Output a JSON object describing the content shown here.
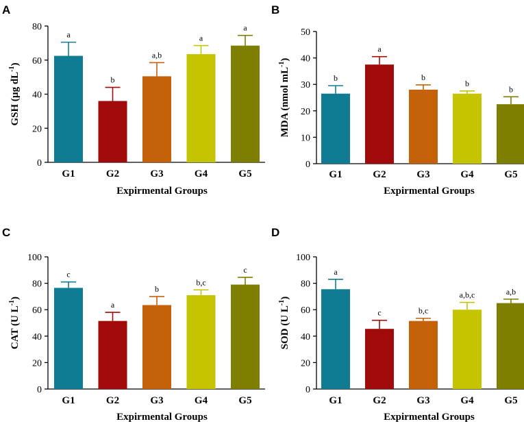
{
  "figure": {
    "palette": [
      "#0f7c93",
      "#a00a0a",
      "#c56209",
      "#c4c400",
      "#7e7e00"
    ],
    "errorbar_color_mode": "match-bar"
  },
  "chart_data": [
    {
      "panel": "A",
      "type": "bar",
      "categories": [
        "G1",
        "G2",
        "G3",
        "G4",
        "G5"
      ],
      "values": [
        62.5,
        36,
        50.5,
        63.5,
        68.5
      ],
      "errors": [
        8,
        8,
        8,
        5,
        6
      ],
      "significance": [
        "a",
        "b",
        "a,b",
        "a",
        "a"
      ],
      "ylabel": "GSH (µg dL",
      "ylabel_sup": "-1",
      "ylabel_close": ")",
      "xlabel": "Expirmental Groups",
      "ylim": [
        0,
        80
      ],
      "yticks": [
        0,
        20,
        40,
        60,
        80
      ]
    },
    {
      "panel": "B",
      "type": "bar",
      "categories": [
        "G1",
        "G2",
        "G3",
        "G4",
        "G5"
      ],
      "values": [
        26.5,
        37.5,
        28,
        26.5,
        22.5
      ],
      "errors": [
        3,
        3,
        1.8,
        1,
        2.8
      ],
      "significance": [
        "b",
        "a",
        "b",
        "b",
        "b"
      ],
      "ylabel": "MDA (nmol mL",
      "ylabel_sup": "-1",
      "ylabel_close": ")",
      "xlabel": "Expirmental Groups",
      "ylim": [
        0,
        50
      ],
      "yticks": [
        0,
        10,
        20,
        30,
        40,
        50
      ]
    },
    {
      "panel": "C",
      "type": "bar",
      "categories": [
        "G1",
        "G2",
        "G3",
        "G4",
        "G5"
      ],
      "values": [
        76.5,
        51.5,
        63.5,
        71,
        79
      ],
      "errors": [
        4.5,
        6.5,
        6.5,
        4,
        5.5
      ],
      "significance": [
        "c",
        "a",
        "b",
        "b,c",
        "c"
      ],
      "ylabel": "CAT (U L",
      "ylabel_sup": "-1",
      "ylabel_close": ")",
      "xlabel": "Expirmental Groups",
      "ylim": [
        0,
        100
      ],
      "yticks": [
        0,
        20,
        40,
        60,
        80,
        100
      ]
    },
    {
      "panel": "D",
      "type": "bar",
      "categories": [
        "G1",
        "G2",
        "G3",
        "G4",
        "G5"
      ],
      "values": [
        75.5,
        45.5,
        51.5,
        60,
        65
      ],
      "errors": [
        7.5,
        6.5,
        2,
        5.5,
        3
      ],
      "significance": [
        "a",
        "c",
        "b,c",
        "a,b,c",
        "a,b"
      ],
      "ylabel": "SOD (U L",
      "ylabel_sup": "-1",
      "ylabel_close": ")",
      "xlabel": "Expirmental Groups",
      "ylim": [
        0,
        100
      ],
      "yticks": [
        0,
        20,
        40,
        60,
        80,
        100
      ]
    }
  ]
}
